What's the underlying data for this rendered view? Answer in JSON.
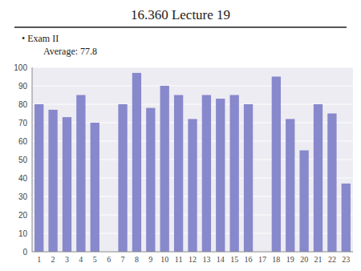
{
  "chart_data": {
    "type": "bar",
    "title": "16.360 Lecture 19",
    "annotations": [
      "• Exam II",
      "Average: 77.8"
    ],
    "categories": [
      1,
      2,
      3,
      4,
      5,
      6,
      7,
      8,
      9,
      10,
      11,
      12,
      13,
      14,
      15,
      16,
      17,
      18,
      19,
      20,
      21,
      22,
      23
    ],
    "values": [
      80,
      77,
      73,
      85,
      70,
      0,
      80,
      97,
      78,
      90,
      85,
      72,
      85,
      83,
      85,
      80,
      0,
      95,
      72,
      55,
      80,
      75,
      37
    ],
    "color": "#8888cc",
    "ylim": [
      0,
      100
    ],
    "yticks": [
      0,
      10,
      20,
      30,
      40,
      50,
      60,
      70,
      80,
      90,
      100
    ],
    "grid": true
  }
}
